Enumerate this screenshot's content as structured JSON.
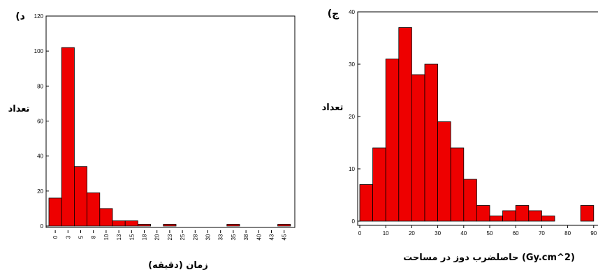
{
  "chart_data": [
    {
      "type": "bar",
      "panel_label": "(د",
      "xlabel": "زمان (دقیقه)",
      "ylabel": "تعداد",
      "ylim": [
        0,
        120
      ],
      "yticks": [
        0,
        20,
        40,
        60,
        80,
        100,
        120
      ],
      "x_tick_labels": [
        "0",
        "3",
        "5",
        "8",
        "10",
        "13",
        "15",
        "18",
        "20",
        "23",
        "25",
        "28",
        "30",
        "33",
        "35",
        "38",
        "40",
        "43",
        "45"
      ],
      "values": [
        16,
        102,
        34,
        19,
        10,
        3,
        3,
        1,
        0,
        1,
        0,
        0,
        0,
        0,
        1,
        0,
        0,
        0,
        1
      ],
      "color": "#ee0000",
      "grid": false
    },
    {
      "type": "bar",
      "panel_label": "(ج",
      "xlabel": "حاصلضرب دوز در مساحت (Gy.cm^2)",
      "ylabel": "تعداد",
      "ylim": [
        0,
        40
      ],
      "yticks": [
        0,
        10,
        20,
        30,
        40
      ],
      "x_tick_labels": [
        "0",
        "10",
        "20",
        "30",
        "40",
        "50",
        "60",
        "70",
        "80",
        "90"
      ],
      "values": [
        7,
        14,
        31,
        37,
        28,
        30,
        19,
        14,
        8,
        3,
        1,
        2,
        3,
        2,
        1,
        0,
        0,
        3
      ],
      "color": "#ee0000",
      "grid": false
    }
  ]
}
